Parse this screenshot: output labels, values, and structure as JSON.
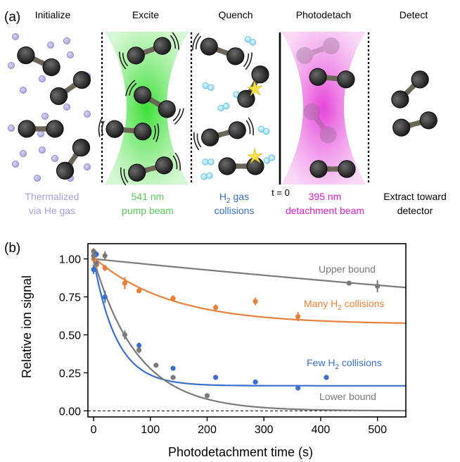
{
  "panel_a": {
    "label": "(a)",
    "stages": [
      "Initialize",
      "Excite",
      "Quench",
      "Photodetach",
      "Detect"
    ],
    "captions": {
      "initialize": [
        "Thermalized",
        "via He gas"
      ],
      "excite": [
        "541 nm",
        "pump beam"
      ],
      "quench_line1_prefix": "H",
      "quench_line1_sub": "2",
      "quench_line1_suffix": " gas",
      "quench_line2": "collisions",
      "t0": "t = 0",
      "photodetach": [
        "395 nm",
        "detachment beam"
      ],
      "detect": [
        "Extract toward",
        "detector"
      ]
    },
    "colors": {
      "helium": "#a8a6dc",
      "pump": "#53d94a",
      "h2": "#55b8dc",
      "detach": "#e23ad8",
      "anion": "#2b2b2b",
      "caption_init": "#a3a1d4",
      "caption_excite": "#59c85a",
      "caption_quench": "#3a6fc4",
      "caption_detach": "#d21fc7"
    },
    "icons": [
      "helium-atom-icon",
      "h2-molecule-icon",
      "anion-dimer-icon",
      "collision-spark-icon"
    ]
  },
  "panel_b": {
    "label": "(b)",
    "annotations": {
      "upper": "Upper bound",
      "many_prefix": "Many H",
      "many_sub": "2",
      "many_suffix": " collisions",
      "few_prefix": "Few H",
      "few_sub": "2",
      "few_suffix": " collisions",
      "lower": "Lower bound"
    }
  },
  "chart_data": {
    "type": "scatter",
    "xlabel": "Photodetachment time (s)",
    "ylabel": "Relative ion signal",
    "xlim": [
      -10,
      550
    ],
    "ylim": [
      -0.04,
      1.1
    ],
    "xticks": [
      0,
      100,
      200,
      300,
      400,
      500
    ],
    "xtick_labels": [
      "0",
      "100",
      "200",
      "300",
      "400",
      "500"
    ],
    "yticks": [
      0.0,
      0.25,
      0.5,
      0.75,
      1.0
    ],
    "ytick_labels": [
      "0.00",
      "0.25",
      "0.50",
      "0.75",
      "1.00"
    ],
    "grid": false,
    "legend": "none",
    "baseline": 0.0,
    "series": [
      {
        "name": "Upper bound",
        "color": "#7a7a7a",
        "x": [
          0,
          20,
          450,
          500
        ],
        "y": [
          1.05,
          1.02,
          0.84,
          0.82
        ],
        "yerr": [
          0.02,
          0.03,
          0.01,
          0.04
        ],
        "fit": {
          "a": 1.0,
          "k": 0.00038,
          "c": 0.0
        }
      },
      {
        "name": "Many H2 collisions",
        "color": "#e8803a",
        "x": [
          0,
          5,
          20,
          55,
          80,
          140,
          215,
          285,
          360
        ],
        "y": [
          1.0,
          0.96,
          0.94,
          0.84,
          0.79,
          0.74,
          0.68,
          0.72,
          0.62
        ],
        "yerr": [
          0.03,
          0.02,
          0.02,
          0.04,
          0.015,
          0.02,
          0.02,
          0.025,
          0.03
        ],
        "fit": {
          "a": 0.44,
          "k": 0.0075,
          "c": 0.57
        }
      },
      {
        "name": "Few H2 collisions",
        "color": "#3b6fce",
        "x": [
          0,
          5,
          20,
          80,
          140,
          215,
          285,
          360,
          410
        ],
        "y": [
          0.93,
          1.03,
          0.75,
          0.43,
          0.28,
          0.22,
          0.19,
          0.15,
          0.22
        ],
        "yerr": [
          0.03,
          0.02,
          0.04,
          0.02,
          0.01,
          0.01,
          0.01,
          0.01,
          0.01
        ],
        "fit": {
          "a": 0.83,
          "k": 0.0245,
          "c": 0.165
        }
      },
      {
        "name": "Lower bound",
        "color": "#7a7a7a",
        "x": [
          0,
          5,
          55,
          80,
          110,
          140,
          200
        ],
        "y": [
          1.02,
          0.97,
          0.5,
          0.4,
          0.3,
          0.22,
          0.1
        ],
        "yerr": [
          0.03,
          0.02,
          0.03,
          0.02,
          0.01,
          0.01,
          0.01
        ],
        "fit": {
          "a": 1.0,
          "k": 0.0128,
          "c": 0.0
        }
      }
    ]
  }
}
